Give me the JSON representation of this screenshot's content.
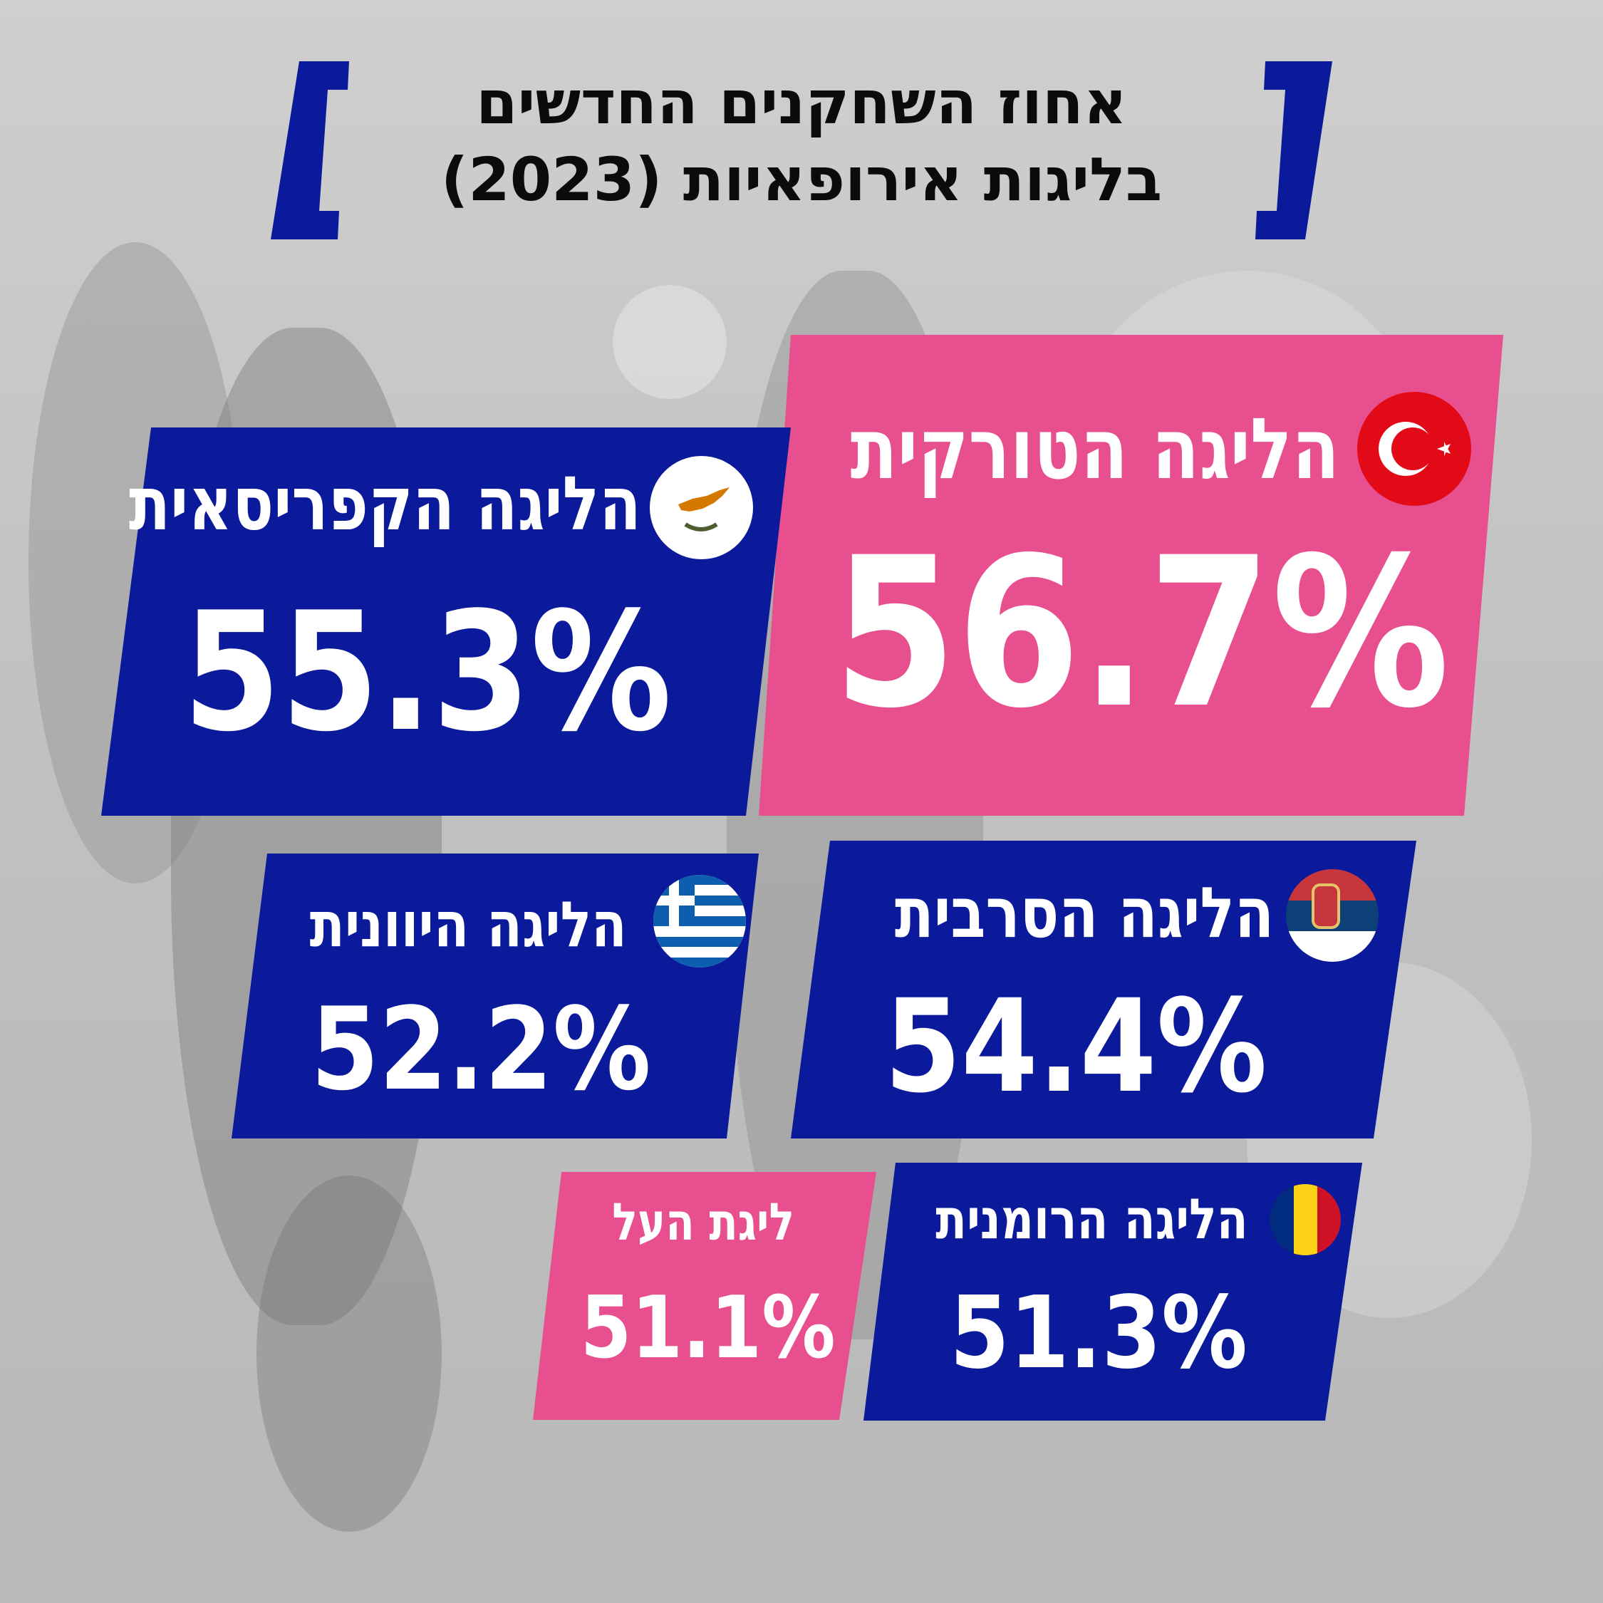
{
  "title": {
    "line1": "אחוז השחקנים החדשים",
    "line2": "בליגות אירופאיות (2023)"
  },
  "colors": {
    "navy": "#0a1a9a",
    "pink": "#e84f8e",
    "title_text": "#0b0b0b"
  },
  "stats": [
    {
      "league": "הליגה הטורקית",
      "value": "56.7%",
      "flag": "turkey-flag",
      "color": "pink"
    },
    {
      "league": "הליגה הקפריסאית",
      "value": "55.3%",
      "flag": "cyprus-flag",
      "color": "navy"
    },
    {
      "league": "הליגה הסרבית",
      "value": "54.4%",
      "flag": "serbia-flag",
      "color": "navy"
    },
    {
      "league": "הליגה היוונית",
      "value": "52.2%",
      "flag": "greece-flag",
      "color": "navy"
    },
    {
      "league": "הליגה הרומנית",
      "value": "51.3%",
      "flag": "romania-flag",
      "color": "navy"
    },
    {
      "league": "ליגת העל",
      "value": "51.1%",
      "flag": "",
      "color": "pink"
    }
  ]
}
